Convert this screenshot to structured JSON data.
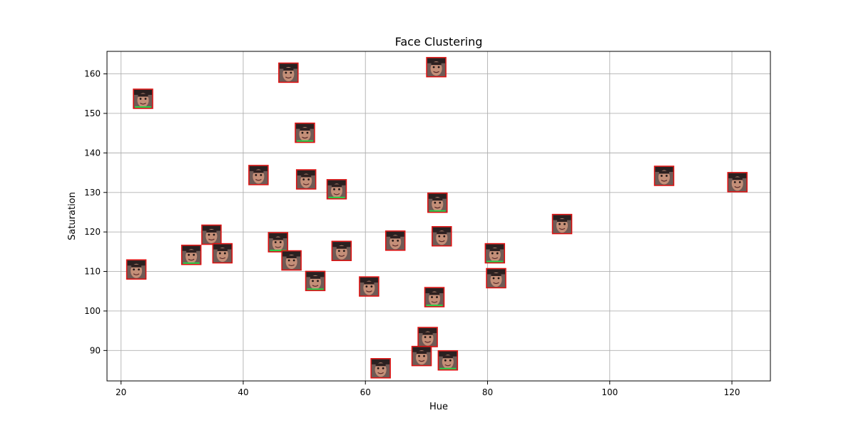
{
  "chart_data": {
    "type": "scatter",
    "title": "Face Clustering",
    "xlabel": "Hue",
    "ylabel": "Saturation",
    "xlim": [
      17.7,
      126.3
    ],
    "ylim": [
      82.3,
      165.7
    ],
    "grid": true,
    "xticks": [
      20,
      40,
      60,
      80,
      100,
      120
    ],
    "yticks": [
      90,
      100,
      110,
      120,
      130,
      140,
      150,
      160
    ],
    "marker": "face-thumbnail",
    "points": [
      {
        "x": 23.6,
        "y": 153.7
      },
      {
        "x": 47.4,
        "y": 160.3
      },
      {
        "x": 71.6,
        "y": 161.7
      },
      {
        "x": 50.1,
        "y": 145.1
      },
      {
        "x": 42.5,
        "y": 134.4
      },
      {
        "x": 50.3,
        "y": 133.3
      },
      {
        "x": 55.3,
        "y": 130.8
      },
      {
        "x": 108.9,
        "y": 134.2
      },
      {
        "x": 120.9,
        "y": 132.6
      },
      {
        "x": 71.8,
        "y": 127.4
      },
      {
        "x": 92.2,
        "y": 122.0
      },
      {
        "x": 34.8,
        "y": 119.3
      },
      {
        "x": 45.7,
        "y": 117.4
      },
      {
        "x": 64.9,
        "y": 117.8
      },
      {
        "x": 72.5,
        "y": 118.9
      },
      {
        "x": 31.5,
        "y": 114.2
      },
      {
        "x": 36.6,
        "y": 114.6
      },
      {
        "x": 56.1,
        "y": 115.2
      },
      {
        "x": 81.2,
        "y": 114.6
      },
      {
        "x": 22.5,
        "y": 110.5
      },
      {
        "x": 47.9,
        "y": 112.8
      },
      {
        "x": 51.8,
        "y": 107.6
      },
      {
        "x": 81.4,
        "y": 108.3
      },
      {
        "x": 60.6,
        "y": 106.2
      },
      {
        "x": 71.3,
        "y": 103.5
      },
      {
        "x": 70.2,
        "y": 93.4
      },
      {
        "x": 69.2,
        "y": 88.6
      },
      {
        "x": 73.5,
        "y": 87.5
      },
      {
        "x": 62.5,
        "y": 85.5
      }
    ]
  }
}
